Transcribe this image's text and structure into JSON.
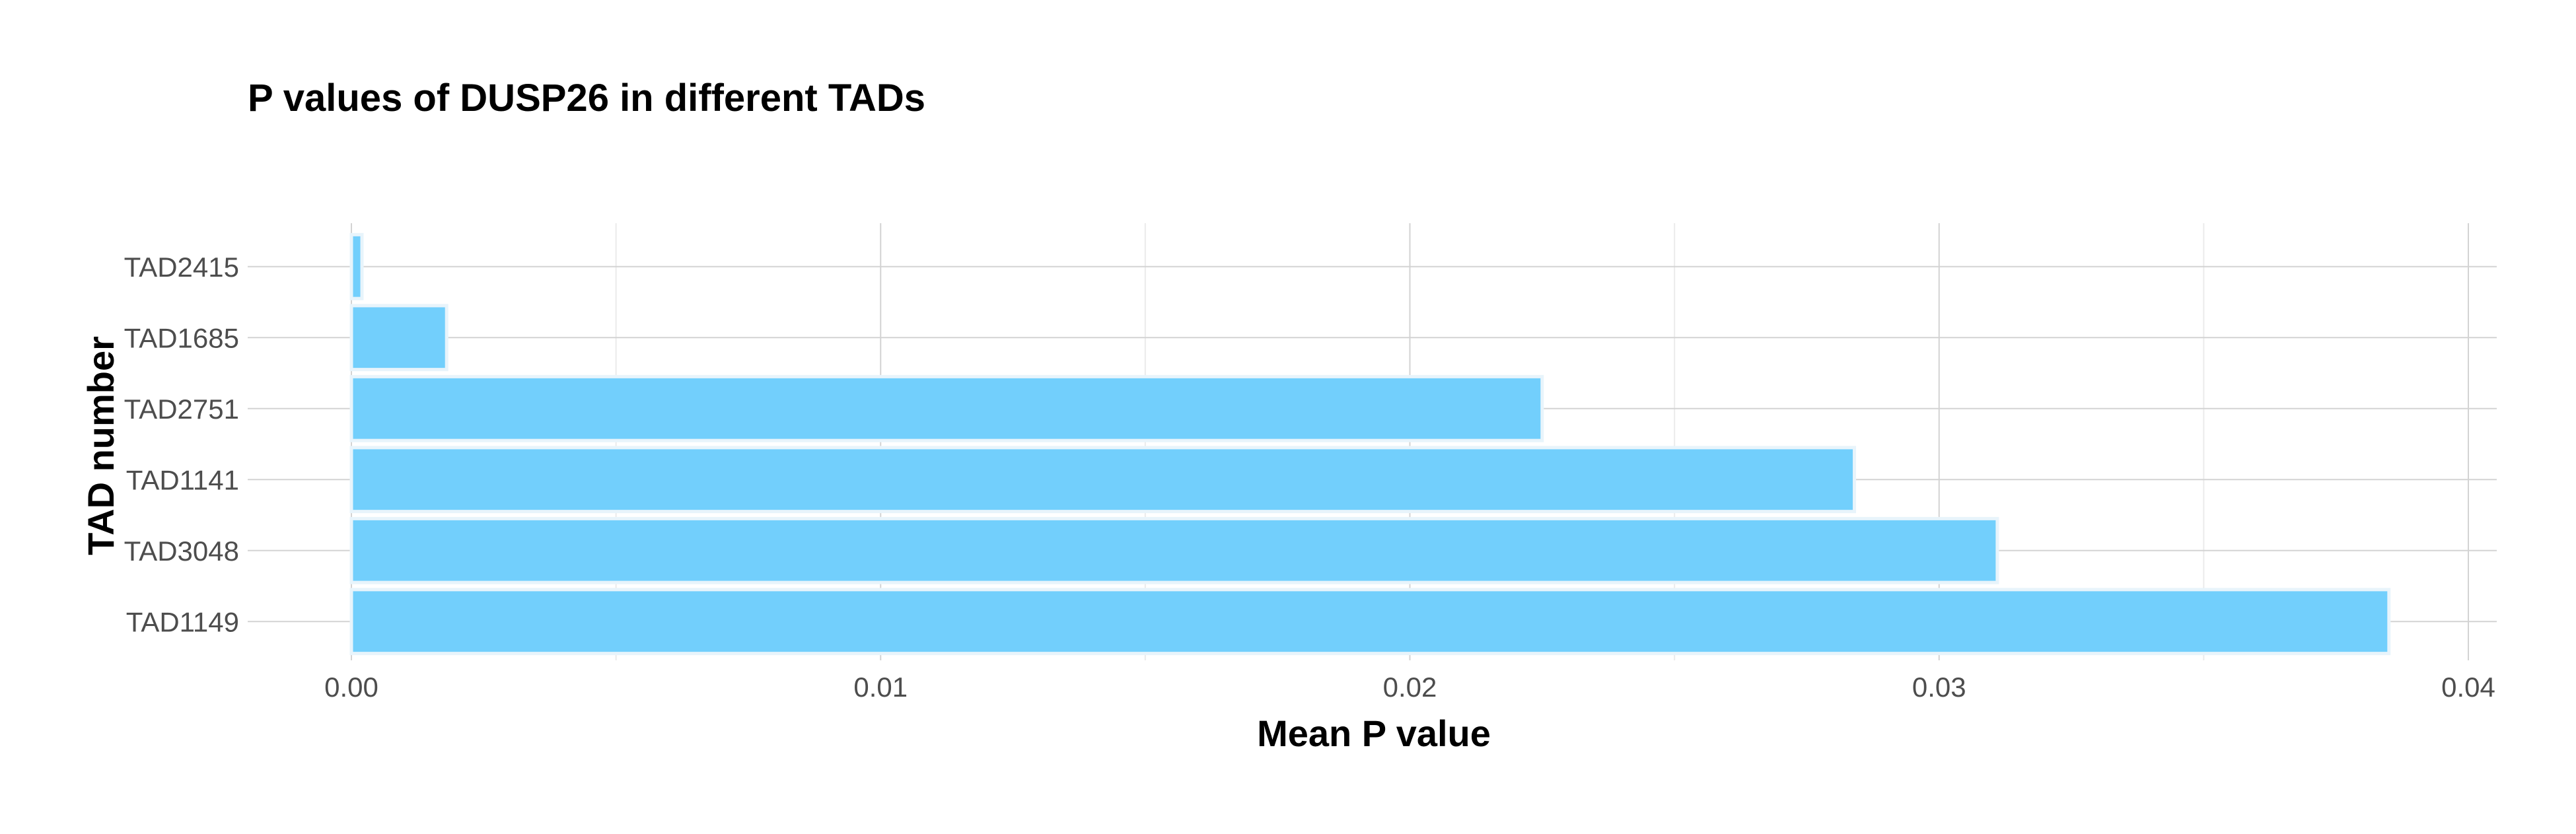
{
  "chart_data": {
    "type": "bar",
    "orientation": "horizontal",
    "title": "P values of DUSP26 in different TADs",
    "xlabel": "Mean P value",
    "ylabel": "TAD number",
    "categories": [
      "TAD2415",
      "TAD1685",
      "TAD2751",
      "TAD1141",
      "TAD3048",
      "TAD1149"
    ],
    "values": [
      0.0002,
      0.0018,
      0.0225,
      0.0284,
      0.0311,
      0.0385
    ],
    "xlim": [
      0,
      0.04
    ],
    "xticks": [
      0.0,
      0.01,
      0.02,
      0.03,
      0.04
    ],
    "xtick_labels": [
      "0.00",
      "0.01",
      "0.02",
      "0.03",
      "0.04"
    ],
    "grid": true,
    "bar_color": "#72cffc",
    "bar_edge_color": "#e8f4fb"
  }
}
